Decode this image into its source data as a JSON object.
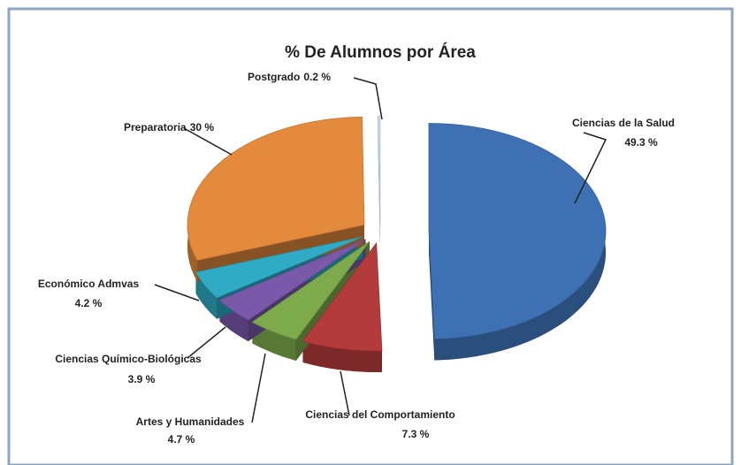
{
  "chart_data": {
    "type": "pie",
    "title": "% De Alumnos por Área",
    "categories": [
      "Ciencias de la Salud",
      "Ciencias del Comportamiento",
      "Artes y Humanidades",
      "Ciencias Químico-Biológicas",
      "Económico Admvas",
      "Preparatoria",
      "Postgrado"
    ],
    "values": [
      49.3,
      7.3,
      4.7,
      3.9,
      4.2,
      30,
      0.2
    ],
    "value_labels": [
      "49.3 %",
      "7.3 %",
      "4.7 %",
      "3.9 %",
      "4.2 %",
      "30 %",
      "0.2 %"
    ],
    "colors": [
      "#3d71b3",
      "#b33b3b",
      "#7dab4b",
      "#7a58aa",
      "#2fabc6",
      "#e38a3c",
      "#cddcee"
    ]
  }
}
